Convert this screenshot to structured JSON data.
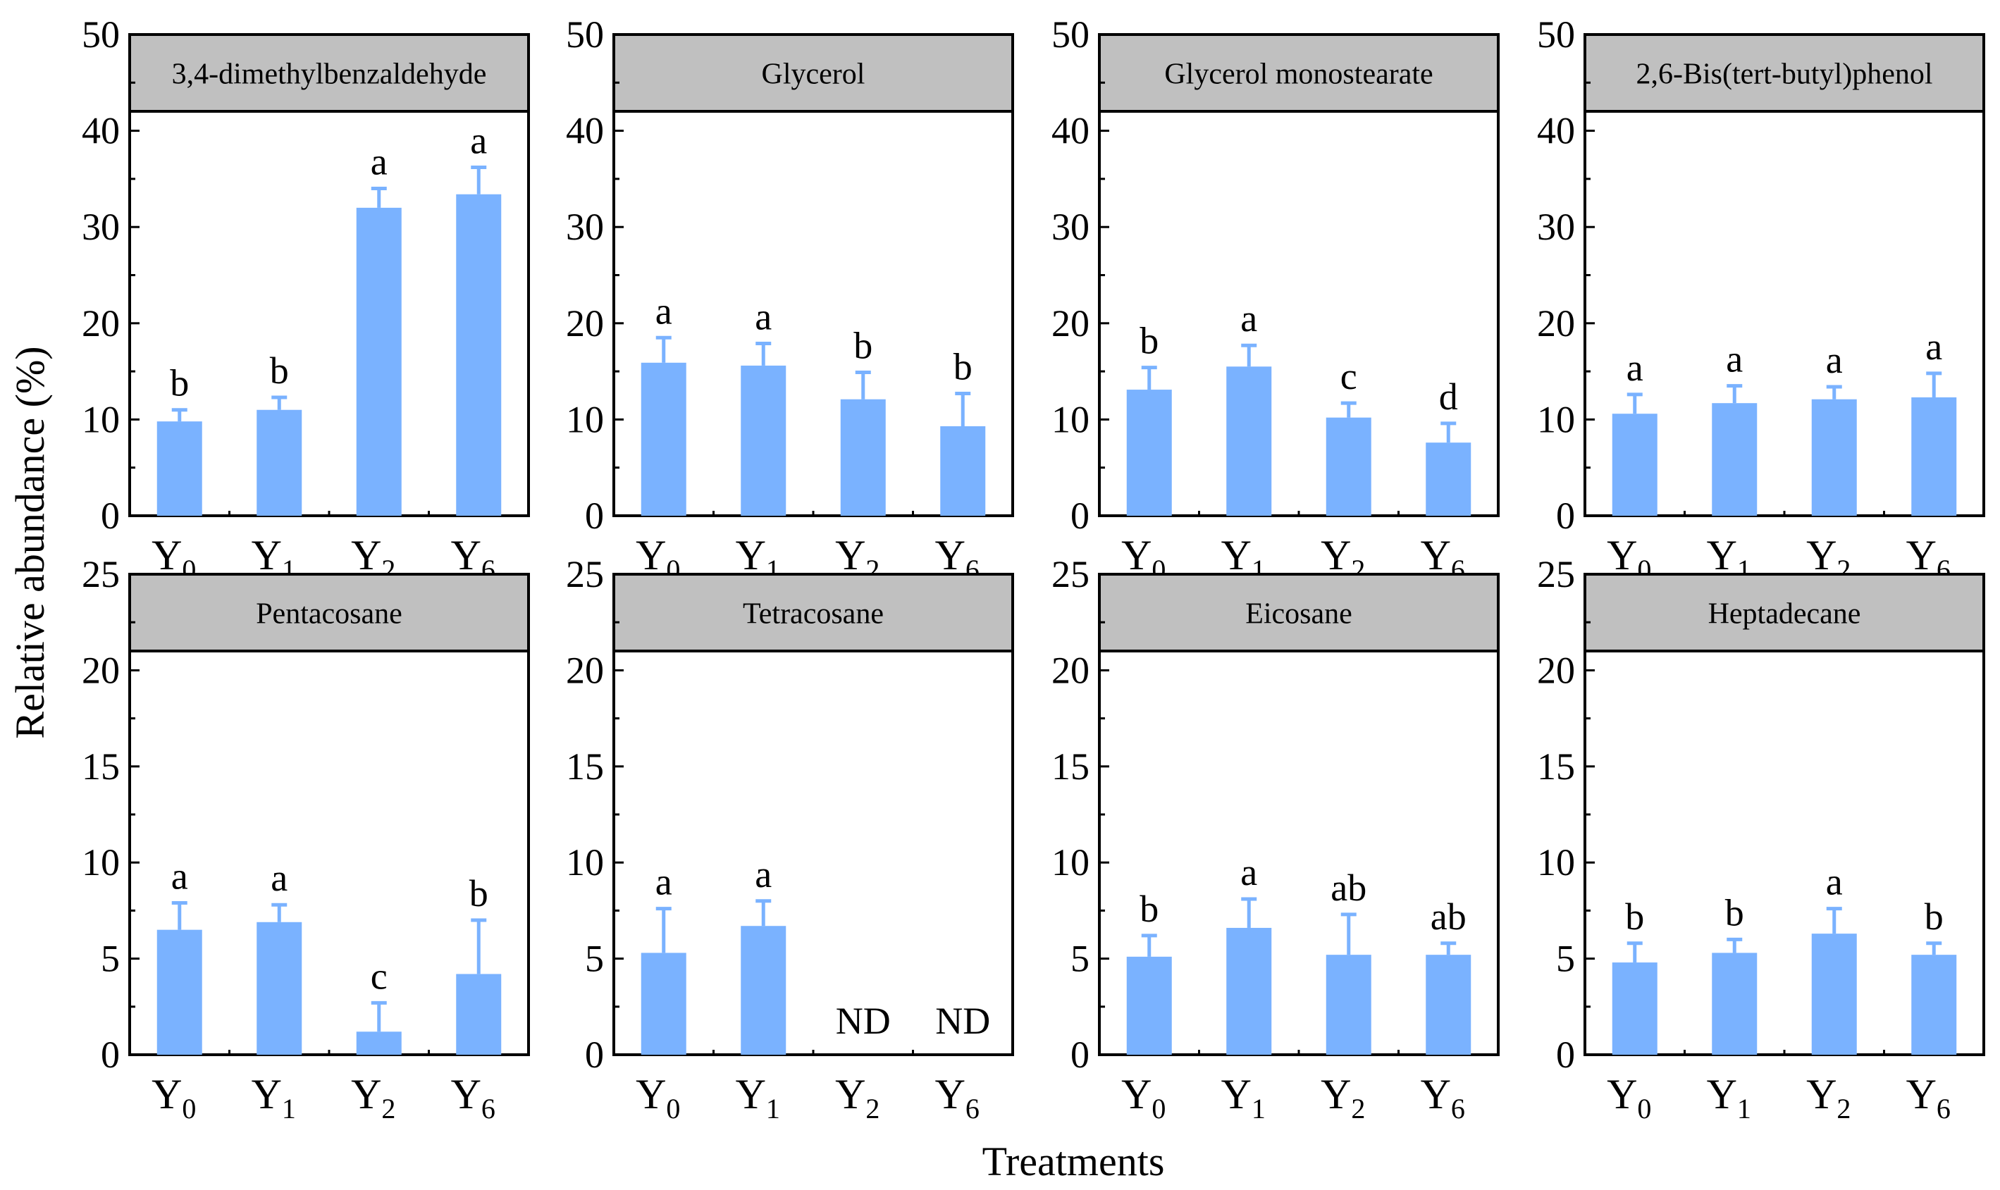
{
  "figure": {
    "ylabel": "Relative abundance (%)",
    "xlabel": "Treatments"
  },
  "categories": [
    {
      "base": "Y",
      "sub": "0"
    },
    {
      "base": "Y",
      "sub": "1"
    },
    {
      "base": "Y",
      "sub": "2"
    },
    {
      "base": "Y",
      "sub": "6"
    }
  ],
  "colors": {
    "bar": "#7ab2ff",
    "title_box": "#c0c0c0",
    "frame": "#000000"
  },
  "chart_data": [
    {
      "type": "bar",
      "title": "3,4-dimethylbenzaldehyde",
      "ylim": [
        0,
        50
      ],
      "yticks": [
        0,
        10,
        20,
        30,
        40,
        50
      ],
      "values": [
        9.8,
        11.0,
        32.0,
        33.4
      ],
      "errors": [
        1.2,
        1.3,
        2.0,
        2.8
      ],
      "labels": [
        "b",
        "b",
        "a",
        "a"
      ]
    },
    {
      "type": "bar",
      "title": "Glycerol",
      "ylim": [
        0,
        50
      ],
      "yticks": [
        0,
        10,
        20,
        30,
        40,
        50
      ],
      "values": [
        15.9,
        15.6,
        12.1,
        9.3
      ],
      "errors": [
        2.6,
        2.3,
        2.8,
        3.4
      ],
      "labels": [
        "a",
        "a",
        "b",
        "b"
      ]
    },
    {
      "type": "bar",
      "title": "Glycerol monostearate",
      "ylim": [
        0,
        50
      ],
      "yticks": [
        0,
        10,
        20,
        30,
        40,
        50
      ],
      "values": [
        13.1,
        15.5,
        10.2,
        7.6
      ],
      "errors": [
        2.3,
        2.2,
        1.5,
        2.0
      ],
      "labels": [
        "b",
        "a",
        "c",
        "d"
      ]
    },
    {
      "type": "bar",
      "title": "2,6-Bis(tert-butyl)phenol",
      "ylim": [
        0,
        50
      ],
      "yticks": [
        0,
        10,
        20,
        30,
        40,
        50
      ],
      "values": [
        10.6,
        11.7,
        12.1,
        12.3
      ],
      "errors": [
        2.0,
        1.8,
        1.3,
        2.5
      ],
      "labels": [
        "a",
        "a",
        "a",
        "a"
      ]
    },
    {
      "type": "bar",
      "title": "Pentacosane",
      "ylim": [
        0,
        25
      ],
      "yticks": [
        0,
        5,
        10,
        15,
        20,
        25
      ],
      "values": [
        6.5,
        6.9,
        1.2,
        4.2
      ],
      "errors": [
        1.4,
        0.9,
        1.5,
        2.8
      ],
      "labels": [
        "a",
        "a",
        "c",
        "b"
      ]
    },
    {
      "type": "bar",
      "title": "Tetracosane",
      "ylim": [
        0,
        25
      ],
      "yticks": [
        0,
        5,
        10,
        15,
        20,
        25
      ],
      "values": [
        5.3,
        6.7,
        null,
        null
      ],
      "errors": [
        2.3,
        1.3,
        null,
        null
      ],
      "labels": [
        "a",
        "a",
        "ND",
        "ND"
      ]
    },
    {
      "type": "bar",
      "title": "Eicosane",
      "ylim": [
        0,
        25
      ],
      "yticks": [
        0,
        5,
        10,
        15,
        20,
        25
      ],
      "values": [
        5.1,
        6.6,
        5.2,
        5.2
      ],
      "errors": [
        1.1,
        1.5,
        2.1,
        0.6
      ],
      "labels": [
        "b",
        "a",
        "ab",
        "ab"
      ]
    },
    {
      "type": "bar",
      "title": "Heptadecane",
      "ylim": [
        0,
        25
      ],
      "yticks": [
        0,
        5,
        10,
        15,
        20,
        25
      ],
      "values": [
        4.8,
        5.3,
        6.3,
        5.2
      ],
      "errors": [
        1.0,
        0.7,
        1.3,
        0.6
      ],
      "labels": [
        "b",
        "b",
        "a",
        "b"
      ]
    }
  ]
}
